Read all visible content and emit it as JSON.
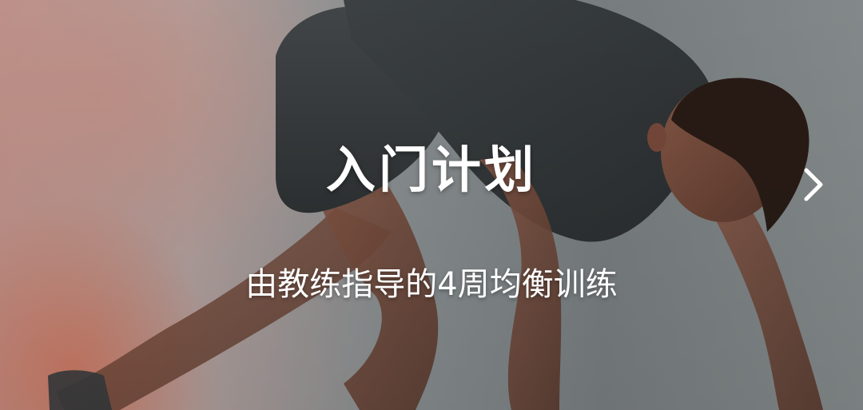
{
  "banner": {
    "title": "入门计划",
    "subtitle": "由教练指导的4周均衡训练",
    "next_icon": "chevron-right-icon",
    "text_color": "#ffffff"
  }
}
